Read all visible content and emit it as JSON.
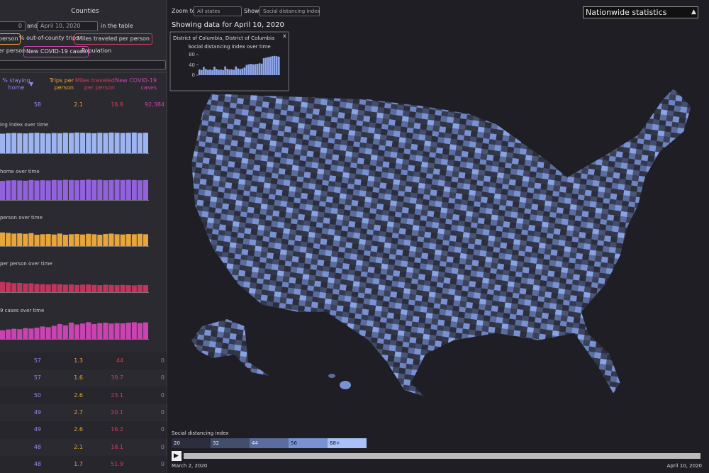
{
  "left_panel": {
    "title": "Counties",
    "filter": {
      "from": "0",
      "joiner": "and",
      "to": "April 10, 2020",
      "suffix": "in the table"
    },
    "metric_buttons": [
      "person",
      "% out-of-county trips",
      "Miles traveled per person",
      "er person",
      "New COVID-19 cases",
      "Population"
    ],
    "columns": [
      {
        "label": "% staying home",
        "color": "#9d86f2"
      },
      {
        "label": "Trips per person",
        "color": "#e8a53a"
      },
      {
        "label": "Miles traveled per person",
        "color": "#c9405f"
      },
      {
        "label": "New COVID-19 cases",
        "color": "#c646ad"
      }
    ],
    "sort_indicator": "▼",
    "summary": [
      58,
      2.1,
      18.8,
      "92,384"
    ],
    "mini_charts": [
      {
        "title": "ing index over time",
        "color": "#9db4f0",
        "values": [
          86,
          88,
          89,
          88,
          87,
          89,
          90,
          88,
          87,
          89,
          88,
          90,
          89,
          91,
          90,
          89,
          88,
          90,
          89,
          91,
          90,
          89,
          90,
          91,
          89,
          90
        ]
      },
      {
        "title": "home over time",
        "color": "#9262dc",
        "values": [
          84,
          86,
          87,
          86,
          85,
          88,
          86,
          87,
          86,
          88,
          87,
          89,
          88,
          87,
          88,
          90,
          88,
          89,
          87,
          88,
          89,
          88,
          89,
          88,
          87,
          88
        ]
      },
      {
        "title": "person over time",
        "color": "#e8a53a",
        "values": [
          60,
          58,
          55,
          56,
          54,
          57,
          50,
          52,
          53,
          51,
          55,
          50,
          52,
          53,
          51,
          54,
          52,
          50,
          53,
          55,
          52,
          51,
          53,
          52,
          54,
          52
        ]
      },
      {
        "title": "per person over time",
        "color": "#c2345c",
        "values": [
          45,
          43,
          40,
          41,
          38,
          39,
          36,
          35,
          34,
          36,
          35,
          33,
          34,
          32,
          33,
          34,
          32,
          31,
          33,
          32,
          31,
          32,
          31,
          30,
          32,
          31
        ]
      },
      {
        "title": "9 cases over time",
        "color": "#c944b0",
        "values": [
          38,
          42,
          45,
          43,
          48,
          46,
          50,
          55,
          52,
          58,
          66,
          60,
          72,
          64,
          68,
          74,
          66,
          70,
          72,
          68,
          70,
          69,
          72,
          74,
          70,
          73
        ]
      }
    ],
    "rows": [
      [
        57,
        1.3,
        44,
        0
      ],
      [
        57,
        1.6,
        39.7,
        0
      ],
      [
        50,
        2.6,
        23.1,
        0
      ],
      [
        49,
        2.7,
        20.1,
        0
      ],
      [
        49,
        2.6,
        16.2,
        0
      ],
      [
        48,
        2.1,
        18.1,
        0
      ],
      [
        48,
        1.7,
        51.9,
        0
      ]
    ]
  },
  "toolbar": {
    "zoom_label": "Zoom to",
    "zoom_value": "All states",
    "show_label": "Show",
    "show_value": "Social distancing index",
    "nationwide": "Nationwide statistics",
    "nationwide_icon": "▲"
  },
  "date_heading": "Showing data for April 10, 2020",
  "popup": {
    "title": "District of Columbia, District of Columbia",
    "close": "x",
    "chart_title": "Social distancing index over time",
    "ylim": [
      0,
      80
    ],
    "yticks": [
      0,
      40,
      80
    ],
    "color": "#8ea6ea",
    "values": [
      22,
      20,
      32,
      24,
      21,
      22,
      20,
      33,
      24,
      21,
      22,
      20,
      34,
      25,
      22,
      23,
      21,
      34,
      26,
      24,
      26,
      30,
      40,
      42,
      44,
      42,
      43,
      44,
      46,
      45,
      66,
      68,
      70,
      72,
      74,
      75,
      74,
      72
    ]
  },
  "legend": {
    "title": "Social distancing index",
    "bins": [
      20,
      32,
      44,
      56,
      {
        "value": 68,
        "label": "68+"
      }
    ],
    "colors": [
      "#2c2e3d",
      "#434d6c",
      "#5b6d9e",
      "#7a92d4",
      "#a9c1f8"
    ]
  },
  "timeline": {
    "start": "March 2, 2020",
    "end": "April 10, 2020",
    "play": "▶"
  }
}
